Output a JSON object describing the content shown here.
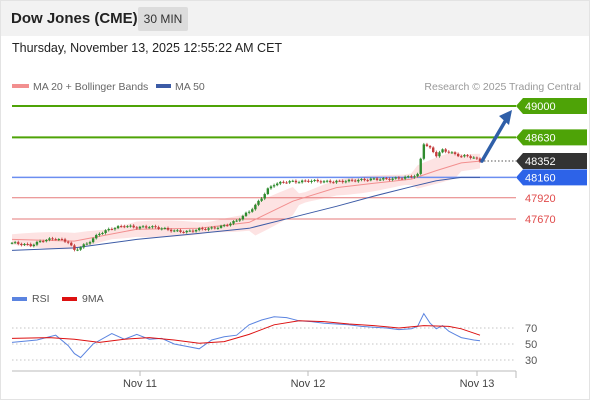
{
  "header": {
    "title": "Dow Jones (CME)",
    "interval": "30 MIN"
  },
  "datetime": "Thursday, November 13, 2025 12:55:22 AM CET",
  "copyright": "Research © 2025 Trading Central",
  "legend": {
    "ma20": "MA 20 + Bollinger Bands",
    "ma50": "MA 50",
    "rsi": "RSI",
    "ma9": "9MA"
  },
  "colors": {
    "resistance": "#4ea307",
    "current": "#333333",
    "ma50": "#3c5ba6",
    "support_line": "#6b8ef0",
    "red_level": "#e67a7a",
    "bands": "#fcdada",
    "ma20": "#f28f8f",
    "rsi": "#5b84e0",
    "rsi_ma": "#dd1111",
    "arrow": "#2f5fa8"
  },
  "chart_data": [
    {
      "type": "line",
      "title": "",
      "x_labels": [
        "Nov 11",
        "Nov 12",
        "Nov 13"
      ],
      "levels": [
        {
          "value": 49000,
          "label": "49000",
          "kind": "resistance"
        },
        {
          "value": 48630,
          "label": "48630",
          "kind": "resistance"
        },
        {
          "value": 48352,
          "label": "48352",
          "kind": "current"
        },
        {
          "value": 48160,
          "label": "48160",
          "kind": "pivot"
        },
        {
          "value": 47920,
          "label": "47920",
          "kind": "support"
        },
        {
          "value": 47670,
          "label": "47670",
          "kind": "support"
        }
      ],
      "arrow": {
        "from": 48352,
        "to": 49000
      },
      "price_path": [
        [
          0,
          47390
        ],
        [
          3,
          47360
        ],
        [
          5,
          47420
        ],
        [
          7,
          47440
        ],
        [
          9,
          47400
        ],
        [
          10,
          47300
        ],
        [
          12,
          47380
        ],
        [
          14,
          47500
        ],
        [
          16,
          47560
        ],
        [
          18,
          47590
        ],
        [
          20,
          47570
        ],
        [
          22,
          47580
        ],
        [
          24,
          47560
        ],
        [
          26,
          47530
        ],
        [
          28,
          47520
        ],
        [
          30,
          47550
        ],
        [
          32,
          47560
        ],
        [
          34,
          47590
        ],
        [
          36,
          47650
        ],
        [
          38,
          47760
        ],
        [
          39,
          47830
        ],
        [
          40,
          47920
        ],
        [
          41,
          48020
        ],
        [
          42,
          48080
        ],
        [
          44,
          48110
        ],
        [
          46,
          48110
        ],
        [
          48,
          48120
        ],
        [
          50,
          48110
        ],
        [
          52,
          48110
        ],
        [
          54,
          48120
        ],
        [
          56,
          48130
        ],
        [
          58,
          48140
        ],
        [
          60,
          48140
        ],
        [
          62,
          48150
        ],
        [
          64,
          48170
        ],
        [
          65,
          48190
        ],
        [
          66,
          48560
        ],
        [
          67,
          48500
        ],
        [
          68,
          48420
        ],
        [
          69,
          48480
        ],
        [
          70,
          48460
        ],
        [
          71,
          48430
        ],
        [
          72,
          48410
        ],
        [
          73,
          48410
        ],
        [
          74,
          48390
        ],
        [
          75,
          48352
        ]
      ],
      "ma20_path": [
        [
          0,
          47430
        ],
        [
          10,
          47410
        ],
        [
          20,
          47550
        ],
        [
          30,
          47560
        ],
        [
          38,
          47630
        ],
        [
          45,
          47880
        ],
        [
          52,
          48040
        ],
        [
          58,
          48090
        ],
        [
          64,
          48140
        ],
        [
          68,
          48240
        ],
        [
          72,
          48330
        ],
        [
          75,
          48352
        ]
      ],
      "ma50_path": [
        [
          0,
          47300
        ],
        [
          10,
          47330
        ],
        [
          20,
          47430
        ],
        [
          30,
          47500
        ],
        [
          38,
          47560
        ],
        [
          45,
          47690
        ],
        [
          52,
          47820
        ],
        [
          58,
          47940
        ],
        [
          64,
          48050
        ],
        [
          68,
          48120
        ],
        [
          72,
          48160
        ],
        [
          75,
          48160
        ]
      ]
    },
    {
      "type": "line",
      "title": "",
      "ylim": [
        0,
        100
      ],
      "y_ticks": [
        70,
        50,
        30
      ],
      "rsi_path": [
        [
          0,
          52
        ],
        [
          4,
          55
        ],
        [
          7,
          61
        ],
        [
          9,
          48
        ],
        [
          10,
          38
        ],
        [
          11,
          33
        ],
        [
          13,
          50
        ],
        [
          16,
          63
        ],
        [
          18,
          56
        ],
        [
          20,
          62
        ],
        [
          22,
          56
        ],
        [
          24,
          57
        ],
        [
          26,
          50
        ],
        [
          28,
          47
        ],
        [
          30,
          44
        ],
        [
          32,
          55
        ],
        [
          34,
          59
        ],
        [
          36,
          61
        ],
        [
          38,
          74
        ],
        [
          40,
          80
        ],
        [
          42,
          84
        ],
        [
          44,
          83
        ],
        [
          46,
          79
        ],
        [
          48,
          78
        ],
        [
          50,
          76
        ],
        [
          52,
          75
        ],
        [
          54,
          74
        ],
        [
          56,
          72
        ],
        [
          58,
          71
        ],
        [
          60,
          70
        ],
        [
          62,
          68
        ],
        [
          64,
          69
        ],
        [
          65,
          72
        ],
        [
          66,
          88
        ],
        [
          67,
          76
        ],
        [
          68,
          69
        ],
        [
          69,
          73
        ],
        [
          70,
          66
        ],
        [
          71,
          62
        ],
        [
          72,
          58
        ],
        [
          74,
          55
        ],
        [
          75,
          54
        ]
      ],
      "rsi_ma_path": [
        [
          0,
          57
        ],
        [
          6,
          58
        ],
        [
          10,
          56
        ],
        [
          14,
          52
        ],
        [
          18,
          56
        ],
        [
          22,
          58
        ],
        [
          26,
          55
        ],
        [
          30,
          51
        ],
        [
          34,
          53
        ],
        [
          38,
          62
        ],
        [
          42,
          74
        ],
        [
          46,
          79
        ],
        [
          50,
          78
        ],
        [
          54,
          75
        ],
        [
          58,
          73
        ],
        [
          62,
          70
        ],
        [
          66,
          73
        ],
        [
          70,
          72
        ],
        [
          72,
          69
        ],
        [
          75,
          61
        ]
      ]
    }
  ]
}
